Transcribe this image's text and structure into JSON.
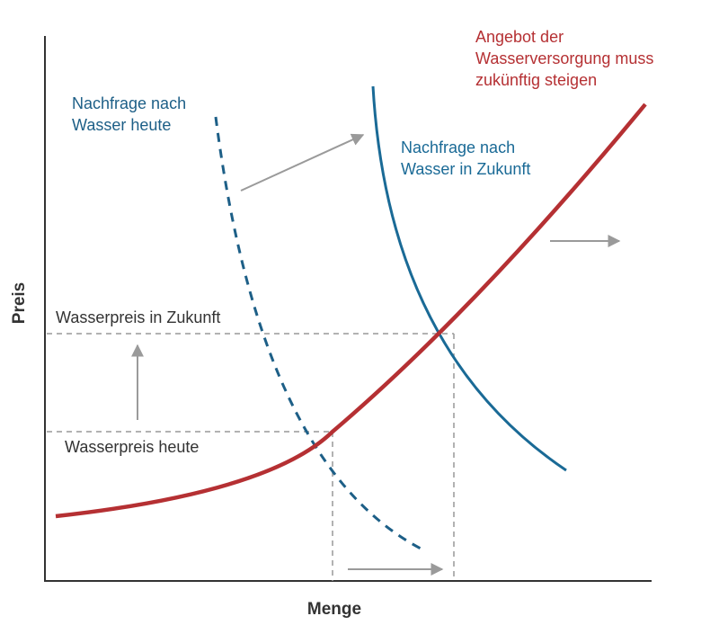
{
  "axes": {
    "x_label": "Menge",
    "y_label": "Preis"
  },
  "labels": {
    "demand_today": [
      "Nachfrage nach",
      "Wasser heute"
    ],
    "demand_future": [
      "Nachfrage nach",
      "Wasser in Zukunft"
    ],
    "supply": [
      "Angebot der",
      "Wasserversorgung muss",
      "zukünftig steigen"
    ],
    "price_future": "Wasserpreis in Zukunft",
    "price_today": "Wasserpreis heute"
  },
  "colors": {
    "demand_today": "#1d5f87",
    "demand_future": "#1a6a96",
    "supply": "#b53033",
    "axis": "#333333",
    "guide": "#999999",
    "arrow": "#9a9a9a",
    "price_text": "#333333"
  }
}
